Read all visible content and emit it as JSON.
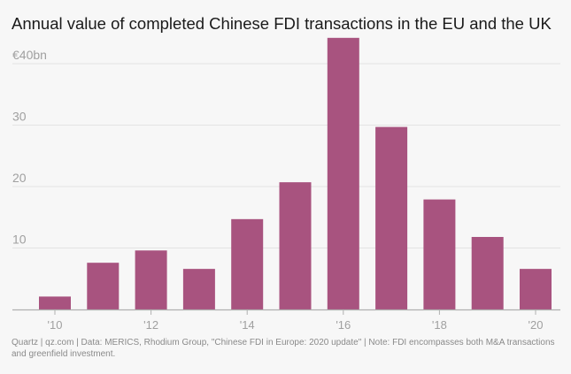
{
  "title": "Annual value of completed Chinese FDI transactions in the EU and the UK",
  "footer": "Quartz | qz.com | Data: MERICS, Rhodium Group, \"Chinese FDI in Europe: 2020 update\" | Note: FDI encompasses both M&A transactions and greenfield investment.",
  "colors": {
    "bar": "#a8537f",
    "grid": "#e3e3e3",
    "axis": "#b0b0b0",
    "tick_text": "#a0a0a0",
    "background": "#f7f7f7"
  },
  "chart_data": {
    "type": "bar",
    "title": "Annual value of completed Chinese FDI transactions in the EU and the UK",
    "xlabel": "",
    "ylabel": "",
    "categories": [
      "2010",
      "2011",
      "2012",
      "2013",
      "2014",
      "2015",
      "2016",
      "2017",
      "2018",
      "2019",
      "2020"
    ],
    "values": [
      2.1,
      7.6,
      9.6,
      6.6,
      14.7,
      20.7,
      44.2,
      29.7,
      17.9,
      11.8,
      6.6
    ],
    "ylim": [
      0,
      40
    ],
    "y_ticks": [
      10,
      20,
      30,
      40
    ],
    "y_tick_labels": [
      "10",
      "20",
      "30",
      "€40bn"
    ],
    "x_tick_labels": [
      "'10",
      "",
      "'12",
      "",
      "'14",
      "",
      "'16",
      "",
      "'18",
      "",
      "'20"
    ],
    "grid": true,
    "legend": "none"
  }
}
